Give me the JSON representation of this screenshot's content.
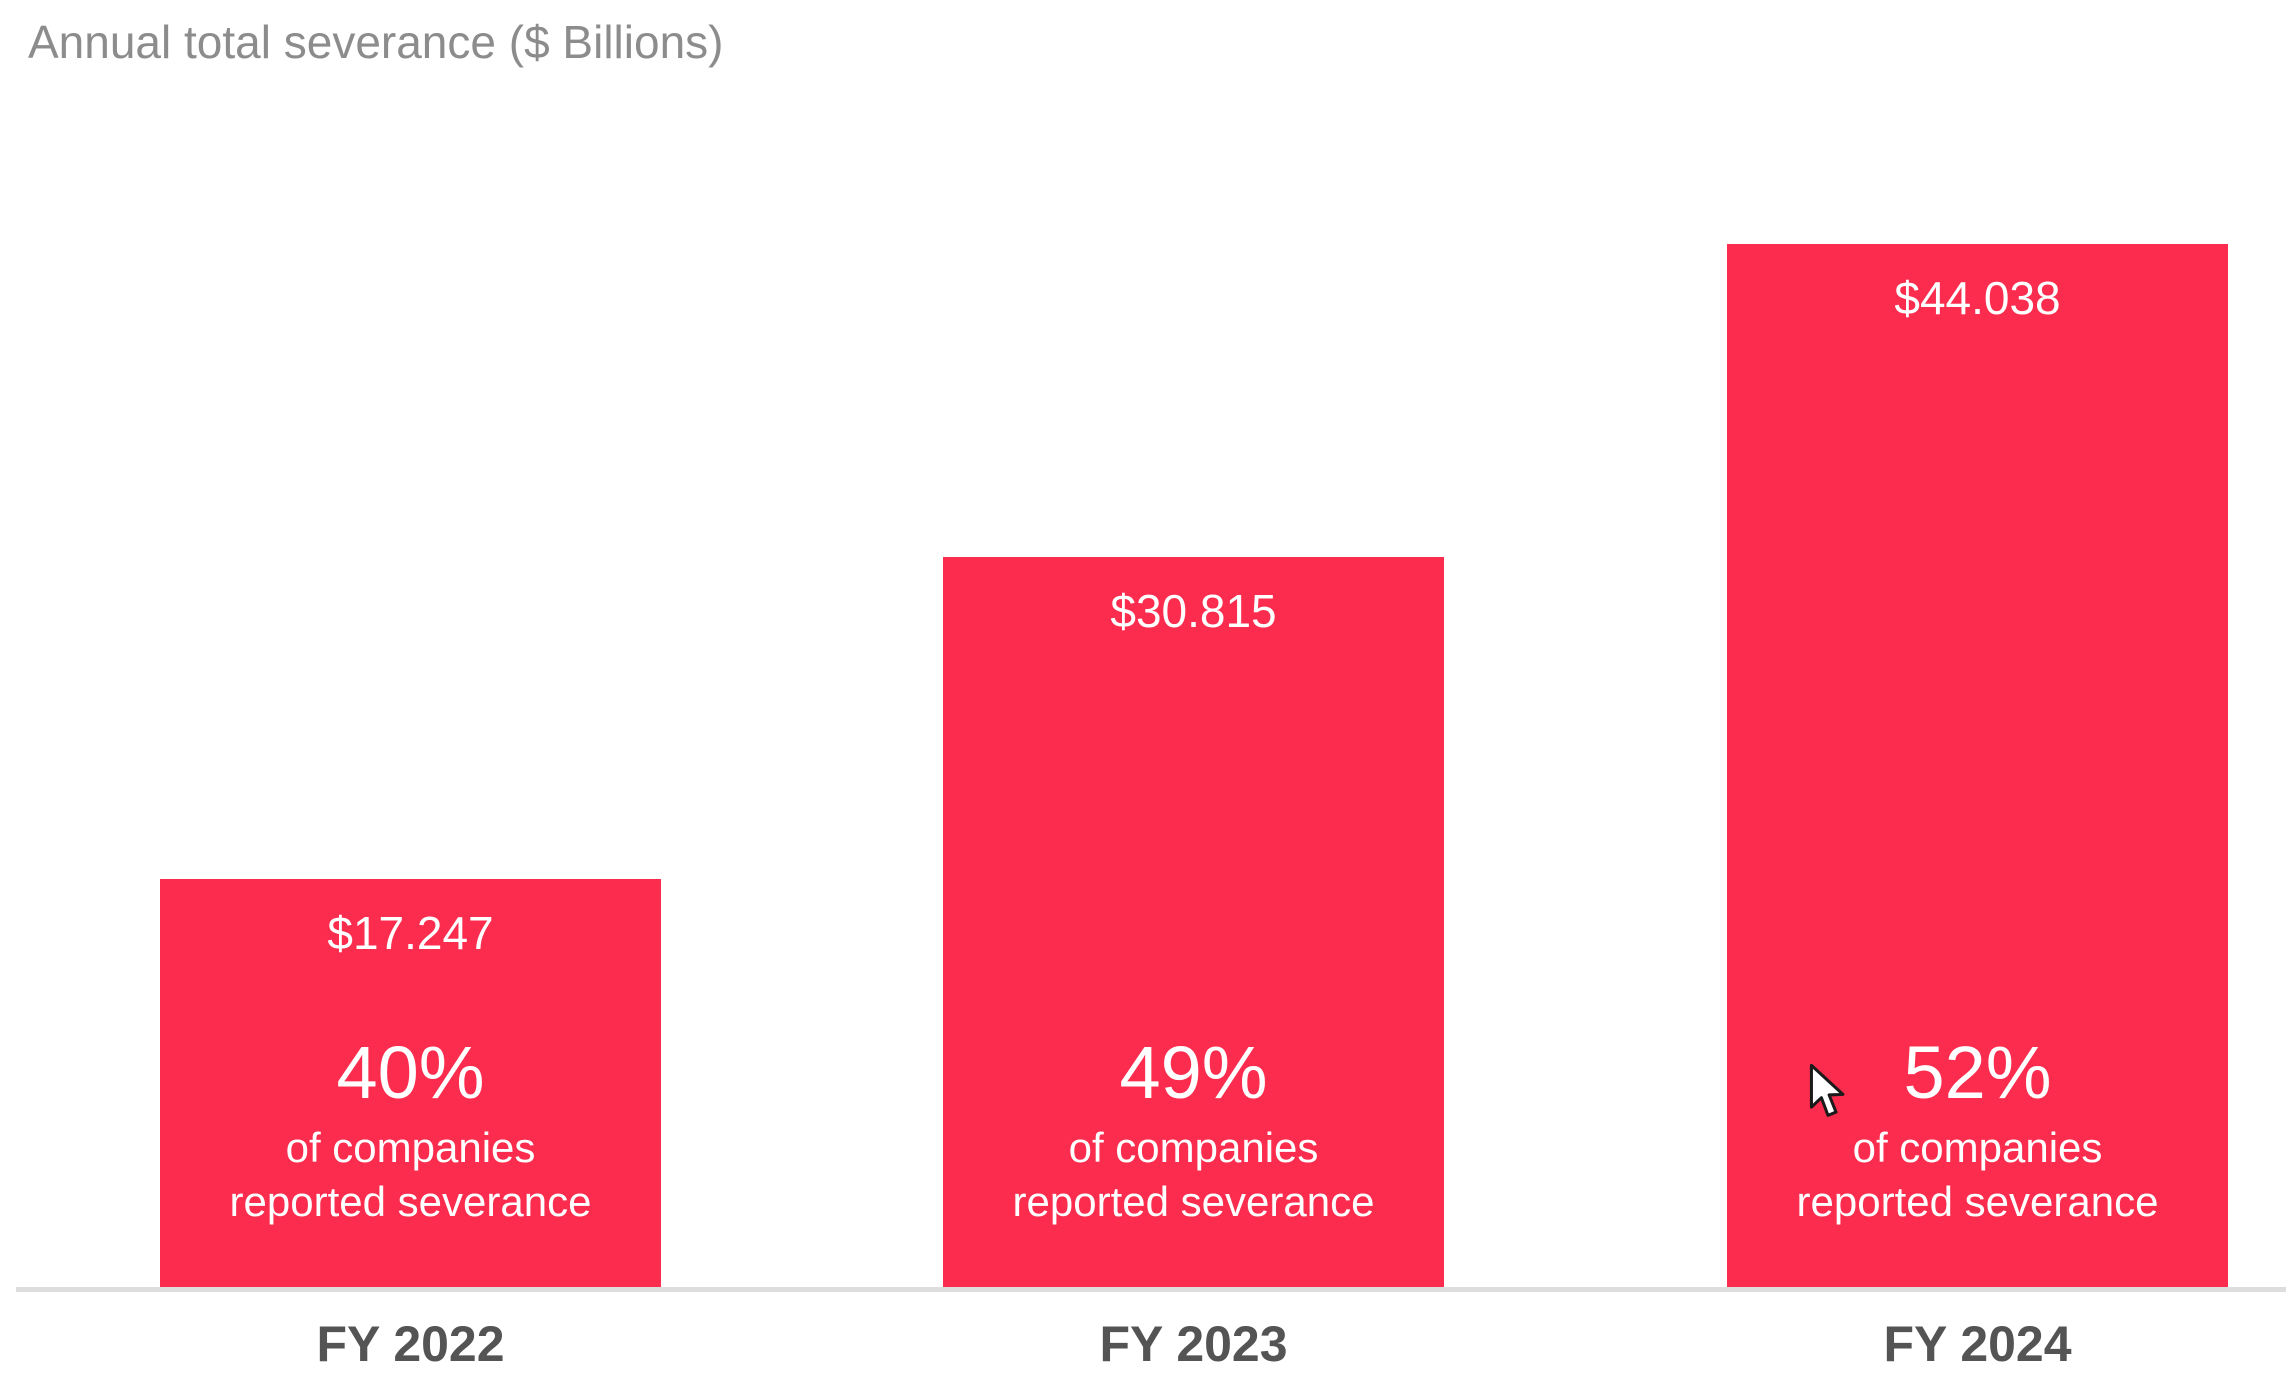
{
  "title": "Annual total severance ($ Billions)",
  "chart_data": {
    "type": "bar",
    "title": "Annual total severance ($ Billions)",
    "categories": [
      "FY 2022",
      "FY 2023",
      "FY 2024"
    ],
    "values": [
      17.247,
      30.815,
      44.038
    ],
    "value_labels": [
      "$17.247",
      "$30.815",
      "$44.038"
    ],
    "annotations": [
      {
        "percent": "40%",
        "line1": "of companies",
        "line2": "reported severance"
      },
      {
        "percent": "49%",
        "line1": "of companies",
        "line2": "reported severance"
      },
      {
        "percent": "52%",
        "line1": "of companies",
        "line2": "reported severance"
      }
    ],
    "xlabel": "",
    "ylabel": "",
    "ylim": [
      0,
      44.038
    ],
    "grid": false,
    "legend": false,
    "bar_color": "#fb2c4d"
  },
  "colors": {
    "bar": "#fb2c4d",
    "bar_text": "#ffffff",
    "title_text": "#8c8c8c",
    "category_text": "#545454",
    "axis_line": "#dddddd"
  }
}
